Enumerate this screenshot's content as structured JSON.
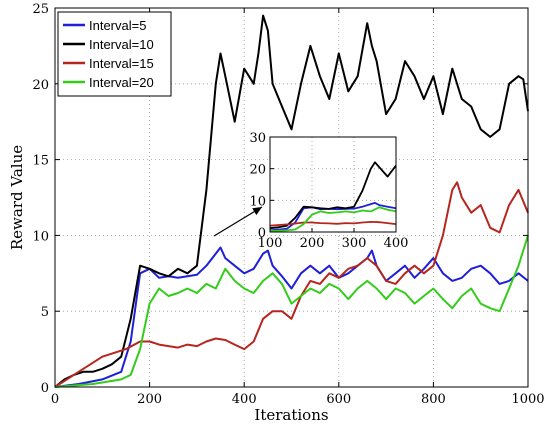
{
  "chart_data": {
    "type": "line",
    "xlabel": "Iterations",
    "ylabel": "Reward Value",
    "xlim": [
      0,
      1000
    ],
    "ylim": [
      0,
      25
    ],
    "xticks": [
      0,
      200,
      400,
      600,
      800,
      1000
    ],
    "yticks": [
      0,
      5,
      10,
      15,
      20,
      25
    ],
    "grid": true,
    "legend_position": "top-left",
    "series": [
      {
        "name": "Interval=5",
        "color": "#1f1fd9",
        "x": [
          0,
          50,
          100,
          140,
          160,
          180,
          200,
          220,
          240,
          260,
          280,
          300,
          320,
          340,
          350,
          360,
          380,
          400,
          420,
          440,
          450,
          460,
          480,
          500,
          520,
          540,
          560,
          580,
          600,
          620,
          640,
          660,
          670,
          680,
          700,
          720,
          740,
          760,
          780,
          800,
          820,
          840,
          860,
          880,
          900,
          920,
          940,
          960,
          980,
          1000
        ],
        "y": [
          0,
          0.2,
          0.5,
          1,
          3,
          7.5,
          7.8,
          7.2,
          7.3,
          7.2,
          7.3,
          7.4,
          8,
          8.8,
          9.2,
          8.5,
          8,
          7.5,
          7.8,
          8.8,
          9,
          8,
          7.3,
          6.5,
          7.5,
          8,
          7.5,
          8,
          7.2,
          7.5,
          8,
          8.5,
          9,
          8,
          7,
          7.5,
          8,
          7.2,
          7.8,
          8.5,
          7.5,
          7,
          7.2,
          7.8,
          8,
          7.5,
          6.8,
          7,
          7.5,
          7
        ]
      },
      {
        "name": "Interval=10",
        "color": "#000000",
        "x": [
          0,
          20,
          40,
          60,
          80,
          100,
          120,
          140,
          160,
          180,
          200,
          220,
          240,
          260,
          280,
          300,
          320,
          340,
          350,
          360,
          380,
          400,
          420,
          430,
          440,
          450,
          460,
          480,
          500,
          520,
          540,
          560,
          580,
          600,
          620,
          640,
          660,
          670,
          680,
          700,
          720,
          740,
          760,
          780,
          800,
          820,
          840,
          860,
          880,
          900,
          920,
          940,
          960,
          980,
          990,
          1000
        ],
        "y": [
          0,
          0.5,
          0.8,
          1,
          1,
          1.2,
          1.5,
          2,
          4.5,
          8,
          7.8,
          7.5,
          7.3,
          7.8,
          7.5,
          8,
          13,
          20,
          22,
          20.5,
          17.5,
          21,
          20,
          22,
          24.5,
          23.5,
          20,
          18.5,
          17,
          20,
          22.5,
          20.5,
          19,
          22,
          19.5,
          20.5,
          24,
          22.5,
          21.5,
          18,
          19,
          21.5,
          20.5,
          19,
          20.5,
          18,
          21,
          19,
          18.5,
          17,
          16.5,
          17,
          20,
          20.5,
          20.3,
          18.2
        ]
      },
      {
        "name": "Interval=15",
        "color": "#b5261e",
        "x": [
          0,
          50,
          100,
          150,
          180,
          200,
          220,
          240,
          260,
          280,
          300,
          320,
          340,
          360,
          380,
          400,
          420,
          440,
          460,
          480,
          500,
          520,
          540,
          560,
          580,
          600,
          620,
          640,
          660,
          680,
          700,
          720,
          740,
          760,
          780,
          800,
          820,
          840,
          850,
          860,
          880,
          900,
          920,
          940,
          960,
          980,
          1000
        ],
        "y": [
          0,
          1,
          2,
          2.5,
          3,
          3,
          2.8,
          2.7,
          2.6,
          2.8,
          2.7,
          3,
          3.2,
          3.1,
          2.8,
          2.5,
          3,
          4.5,
          5,
          5,
          4.5,
          6,
          7,
          6.8,
          7.5,
          7.2,
          7.8,
          8,
          8.5,
          8,
          7,
          6.8,
          7.5,
          8,
          7.5,
          8,
          10,
          13,
          13.5,
          12.5,
          11.5,
          12,
          10.5,
          10.2,
          12,
          13,
          11.5
        ]
      },
      {
        "name": "Interval=20",
        "color": "#33cc1a",
        "x": [
          0,
          40,
          80,
          100,
          140,
          160,
          180,
          200,
          220,
          240,
          260,
          280,
          300,
          320,
          340,
          360,
          380,
          400,
          420,
          440,
          460,
          480,
          500,
          520,
          540,
          560,
          580,
          600,
          620,
          640,
          660,
          680,
          700,
          720,
          740,
          760,
          780,
          800,
          820,
          840,
          860,
          880,
          900,
          920,
          940,
          960,
          980,
          1000
        ],
        "y": [
          0,
          0.1,
          0.2,
          0.3,
          0.5,
          0.8,
          2.5,
          5.5,
          6.5,
          6,
          6.2,
          6.5,
          6.2,
          6.8,
          6.5,
          7.8,
          7,
          6.5,
          6.2,
          7,
          7.5,
          6.8,
          5.5,
          6,
          6.5,
          6.2,
          6.8,
          6.5,
          5.8,
          6.5,
          7,
          6.5,
          5.8,
          6.5,
          6.2,
          5.5,
          6,
          6.5,
          5.8,
          5.2,
          6,
          6.5,
          5.5,
          5.2,
          5,
          6.5,
          8,
          10
        ]
      }
    ],
    "inset": {
      "xlim": [
        100,
        400
      ],
      "ylim": [
        0,
        30
      ],
      "xticks": [
        100,
        200,
        300,
        400
      ],
      "yticks": [
        0,
        10,
        20,
        30
      ],
      "grid": true
    }
  }
}
